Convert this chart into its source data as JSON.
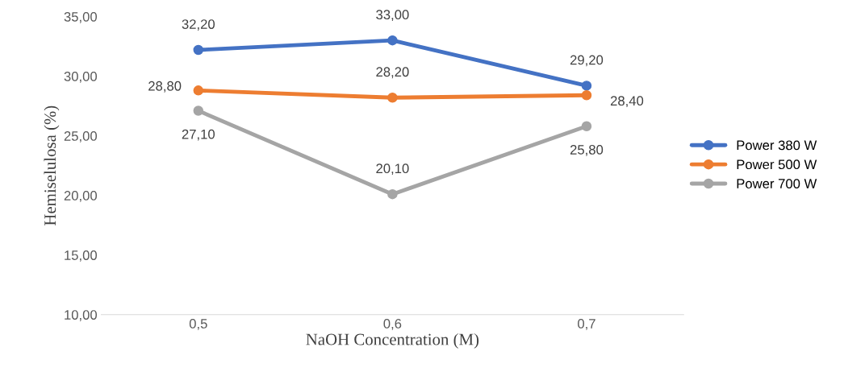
{
  "chart_data": {
    "type": "line",
    "xlabel": "NaOH Concentration (M)",
    "ylabel": "Hemiselulosa (%)",
    "categories": [
      "0,5",
      "0,6",
      "0,7"
    ],
    "series": [
      {
        "name": "Power 380 W",
        "color": "#4472c4",
        "values": [
          32.2,
          33.0,
          29.2
        ],
        "value_labels": [
          "32,20",
          "33,00",
          "29,20"
        ]
      },
      {
        "name": "Power 500 W",
        "color": "#ed7d31",
        "values": [
          28.8,
          28.2,
          28.4
        ],
        "value_labels": [
          "28,80",
          "28,20",
          "28,40"
        ]
      },
      {
        "name": "Power 700 W",
        "color": "#a5a5a5",
        "values": [
          27.1,
          20.1,
          25.8
        ],
        "value_labels": [
          "27,10",
          "20,10",
          "25,80"
        ]
      }
    ],
    "ylim": [
      10,
      35
    ],
    "yticks": [
      {
        "value": 10,
        "label": "10,00"
      },
      {
        "value": 15,
        "label": "15,00"
      },
      {
        "value": 20,
        "label": "20,00"
      },
      {
        "value": 25,
        "label": "25,00"
      },
      {
        "value": 30,
        "label": "30,00"
      },
      {
        "value": 35,
        "label": "35,00"
      }
    ],
    "grid": false,
    "legend": "right",
    "marker": "circle",
    "line_style": "solid"
  }
}
